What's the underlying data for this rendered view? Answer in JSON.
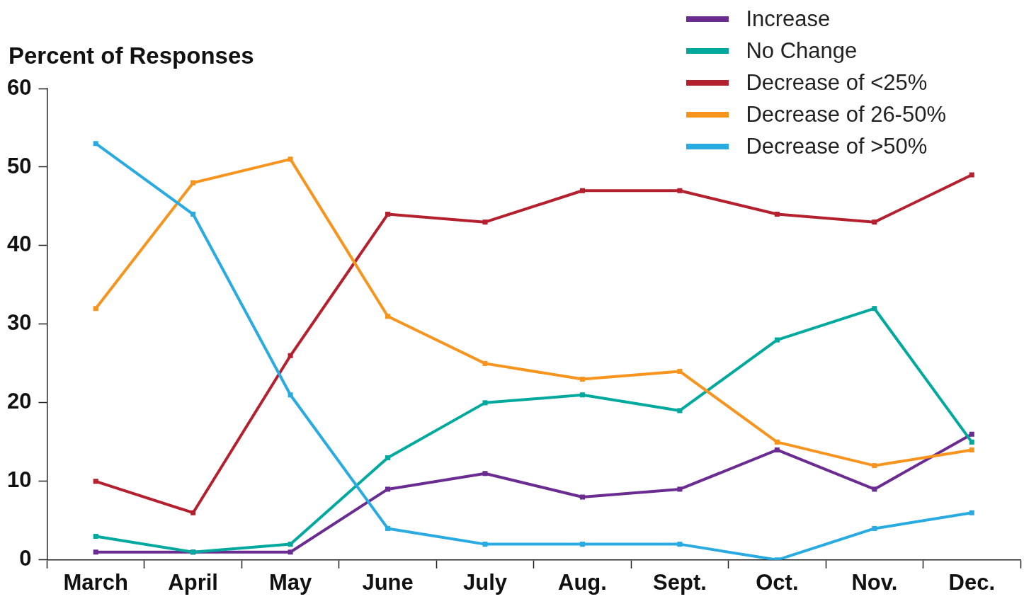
{
  "chart_data": {
    "type": "line",
    "ylabel": "Percent of Responses",
    "categories": [
      "March",
      "April",
      "May",
      "June",
      "July",
      "Aug.",
      "Sept.",
      "Oct.",
      "Nov.",
      "Dec."
    ],
    "series": [
      {
        "name": "Increase",
        "color": "#6a2c91",
        "values": [
          1,
          1,
          1,
          9,
          11,
          8,
          9,
          14,
          9,
          16
        ]
      },
      {
        "name": "No Change",
        "color": "#00a99d",
        "values": [
          3,
          1,
          2,
          13,
          20,
          21,
          19,
          28,
          32,
          15
        ]
      },
      {
        "name": "Decrease of <25%",
        "color": "#b5202e",
        "values": [
          10,
          6,
          26,
          44,
          43,
          47,
          47,
          44,
          43,
          49
        ]
      },
      {
        "name": "Decrease of 26-50%",
        "color": "#f7941d",
        "values": [
          32,
          48,
          51,
          31,
          25,
          23,
          24,
          15,
          12,
          14
        ]
      },
      {
        "name": "Decrease of >50%",
        "color": "#29abe2",
        "values": [
          53,
          44,
          21,
          4,
          2,
          2,
          2,
          0,
          4,
          6
        ]
      }
    ],
    "ylim": [
      0,
      60
    ],
    "yticks": [
      0,
      10,
      20,
      30,
      40,
      50,
      60
    ],
    "grid": false,
    "legend": "top right",
    "marker": "square",
    "line_style": "solid"
  }
}
